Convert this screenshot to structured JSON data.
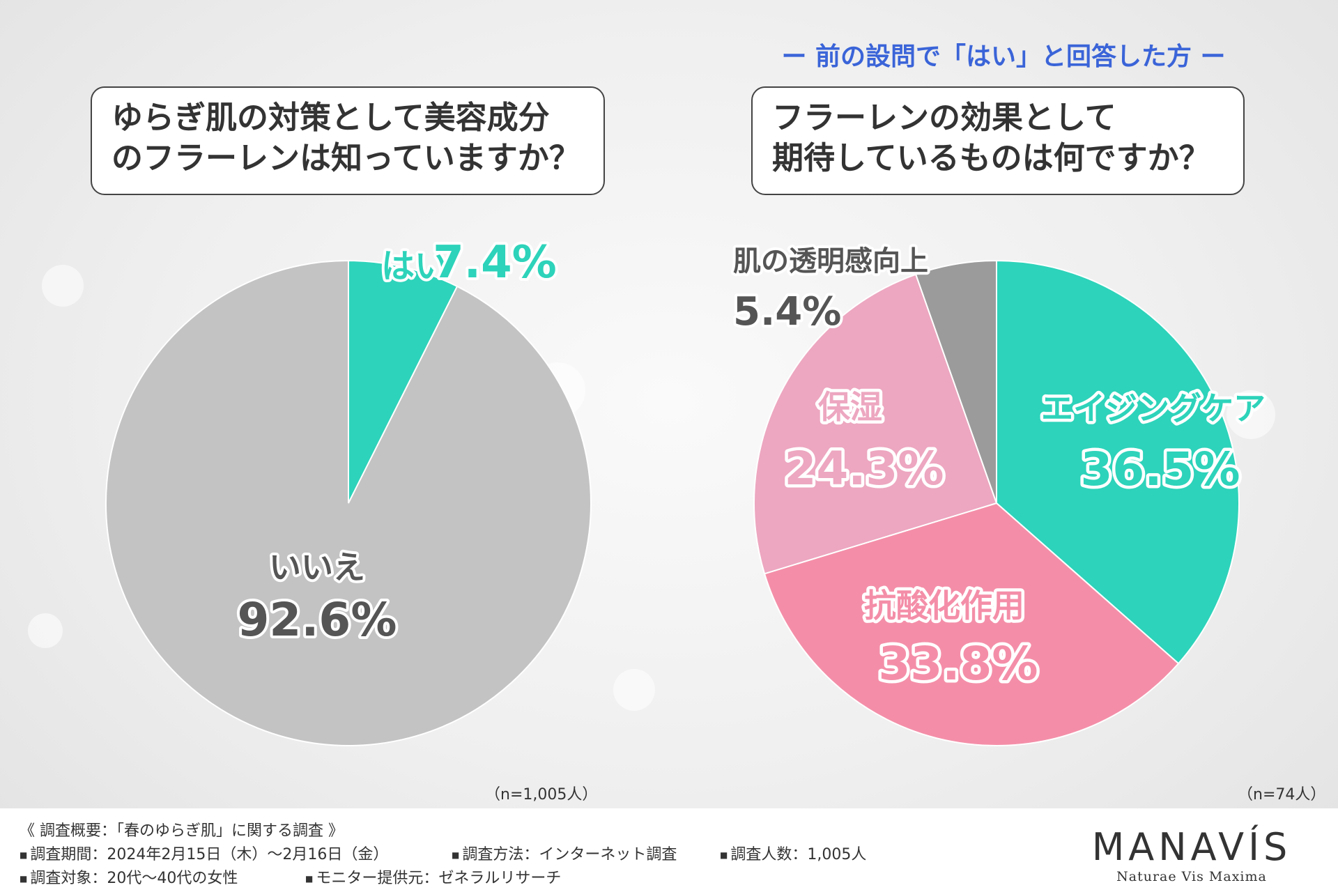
{
  "subnote": "ー 前の設問で「はい」と回答した方 ー",
  "question1": {
    "line1": "ゆらぎ肌の対策として美容成分",
    "line2": "のフラーレンは知っていますか？"
  },
  "question2": {
    "line1": "フラーレンの効果として",
    "line2": "期待しているものは何ですか？"
  },
  "n1": "（n=1,005人）",
  "n2": "（n=74人）",
  "colors": {
    "teal": "#2dd3ba",
    "gray": "#c3c3c3",
    "pink": "#f48ea8",
    "lightpink": "#eda7c0",
    "darkgray": "#9b9b9b"
  },
  "chart_data": [
    {
      "type": "pie",
      "title": "ゆらぎ肌の対策として美容成分のフラーレンは知っていますか？",
      "slices": [
        {
          "label": "はい",
          "value": 7.4,
          "value_label": "7.4%",
          "color": "#2dd3ba"
        },
        {
          "label": "いいえ",
          "value": 92.6,
          "value_label": "92.6%",
          "color": "#c3c3c3"
        }
      ]
    },
    {
      "type": "pie",
      "title": "フラーレンの効果として期待しているものは何ですか？",
      "slices": [
        {
          "label": "エイジングケア",
          "value": 36.5,
          "value_label": "36.5%",
          "color": "#2dd3ba"
        },
        {
          "label": "抗酸化作用",
          "value": 33.8,
          "value_label": "33.8%",
          "color": "#f48ea8"
        },
        {
          "label": "保湿",
          "value": 24.3,
          "value_label": "24.3%",
          "color": "#eda7c0"
        },
        {
          "label": "肌の透明感向上",
          "value": 5.4,
          "value_label": "5.4%",
          "color": "#9b9b9b"
        }
      ]
    }
  ],
  "footer": {
    "title": "《 調査概要：「春のゆらぎ肌」に関する調査 》",
    "period": "調査期間：2024年2月15日（木）～2月16日（金）",
    "method": "調査方法：インターネット調査",
    "count": "調査人数：1,005人",
    "target": "調査対象：20代～40代の女性",
    "provider": "モニター提供元：ゼネラルリサーチ"
  },
  "logo": {
    "name": "MANAVÍS",
    "tagline": "Naturae Vis Maxima"
  }
}
